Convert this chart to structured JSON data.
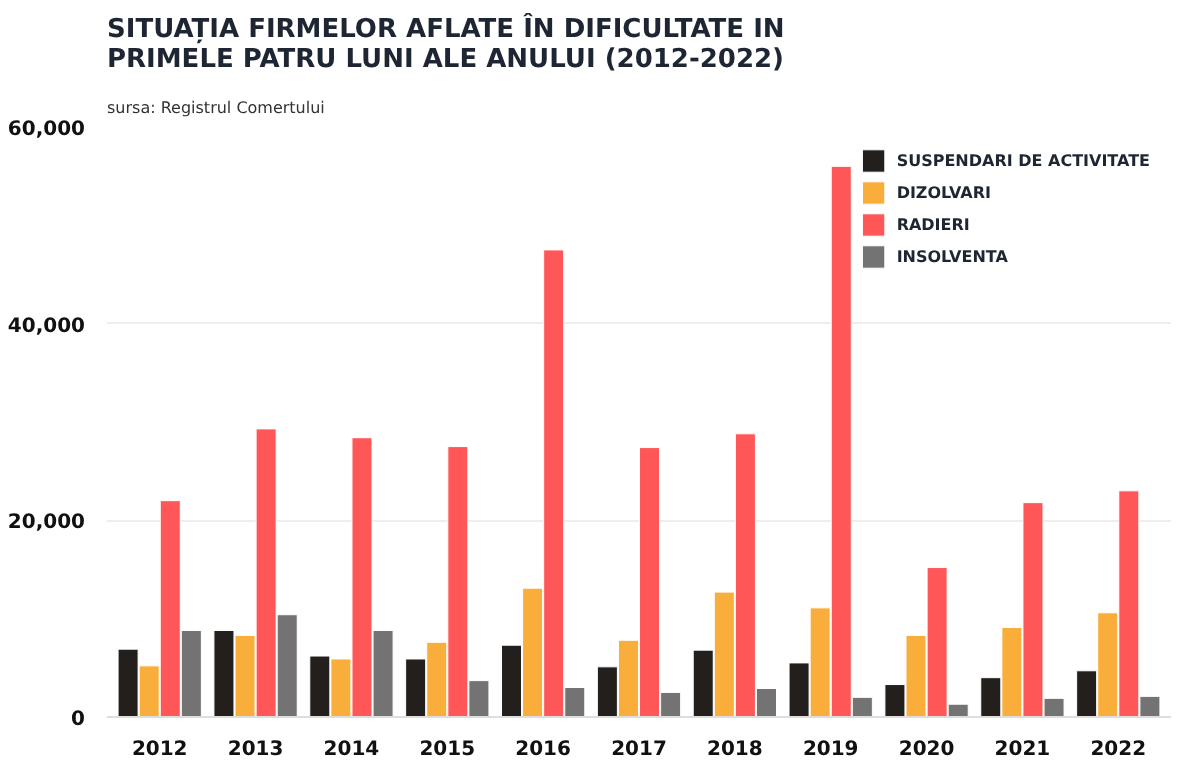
{
  "chart_data": {
    "type": "bar",
    "title": "SITUAȚIA FIRMELOR AFLATE ÎN DIFICULTATE IN\nPRIMELE PATRU LUNI ALE ANULUI (2012-2022)",
    "annotations": [
      "sursa: Registrul Comertului"
    ],
    "categories": [
      "2012",
      "2013",
      "2014",
      "2015",
      "2016",
      "2017",
      "2018",
      "2019",
      "2020",
      "2021",
      "2022"
    ],
    "series": [
      {
        "name": "SUSPENDARI DE ACTIVITATE",
        "color": "#231f1c",
        "values": [
          6900,
          8800,
          6200,
          5900,
          7300,
          5100,
          6800,
          5500,
          3300,
          4000,
          4700
        ]
      },
      {
        "name": "DIZOLVARI",
        "color": "#f9ae3b",
        "values": [
          5200,
          8300,
          5900,
          7600,
          13100,
          7800,
          12700,
          11100,
          8300,
          9100,
          10600
        ]
      },
      {
        "name": "RADIERI",
        "color": "#ff5757",
        "values": [
          22000,
          29300,
          28400,
          27500,
          47500,
          27400,
          28800,
          56000,
          15200,
          21800,
          23000
        ]
      },
      {
        "name": "INSOLVENTA",
        "color": "#737373",
        "values": [
          8800,
          10400,
          8800,
          3700,
          3000,
          2500,
          2900,
          2000,
          1300,
          1900,
          2100
        ]
      }
    ],
    "ylim": [
      0,
      60000
    ],
    "yticks": [
      {
        "value": 0,
        "label": "0"
      },
      {
        "value": 20000,
        "label": "20,000"
      },
      {
        "value": 40000,
        "label": "40,000"
      },
      {
        "value": 60000,
        "label": "60,000"
      }
    ],
    "grid": "y",
    "legend": "top right"
  }
}
